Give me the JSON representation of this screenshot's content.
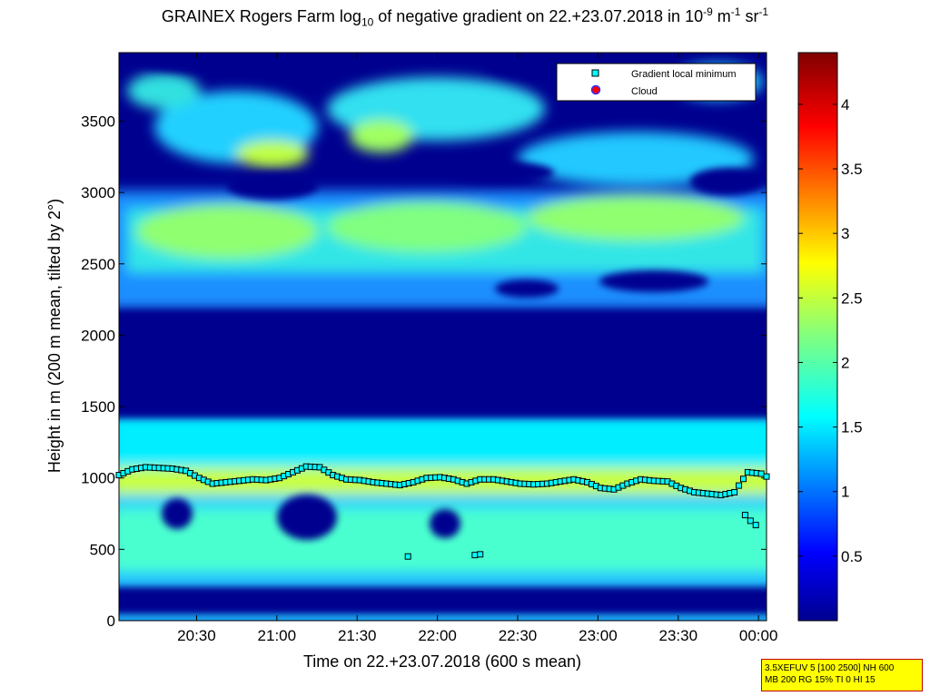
{
  "chart_data": {
    "type": "heatmap",
    "title": {
      "prefix": "GRAINEX Rogers Farm log",
      "sub": "10",
      "middle": " of negative gradient on 22.+23.07.2018 in 10",
      "sup1": "-9",
      "unit_m": " m",
      "sup2": "-1",
      "unit_sr": " sr",
      "sup3": "-1"
    },
    "xlabel": "Time on 22.+23.07.2018 (600 s mean)",
    "ylabel": "Height in m (200 m mean, tilted by 2°)",
    "x_ticks": [
      "20:30",
      "21:00",
      "21:30",
      "22:00",
      "22:30",
      "23:00",
      "23:30",
      "00:00"
    ],
    "x_tick_minutes": [
      1230,
      1260,
      1290,
      1320,
      1350,
      1380,
      1410,
      1440
    ],
    "xlim_minutes": [
      1201,
      1443
    ],
    "y_ticks": [
      "0",
      "500",
      "1000",
      "1500",
      "2000",
      "2500",
      "3000",
      "3500"
    ],
    "y_tick_values": [
      0,
      500,
      1000,
      1500,
      2000,
      2500,
      3000,
      3500
    ],
    "ylim": [
      0,
      3980
    ],
    "colorbar": {
      "ticks": [
        "0.5",
        "1",
        "1.5",
        "2",
        "2.5",
        "3",
        "3.5",
        "4"
      ],
      "tick_values": [
        0.5,
        1,
        1.5,
        2,
        2.5,
        3,
        3.5,
        4
      ],
      "range": [
        0,
        4.4
      ],
      "colormap": "jet"
    },
    "legend": {
      "placement": "top-right",
      "entries": [
        {
          "label": "Gradient local minimum",
          "marker": "square",
          "color": "#00ffff"
        },
        {
          "label": "Cloud",
          "marker": "circle",
          "color": "#ff0000"
        }
      ]
    },
    "series": [
      {
        "name": "Gradient local minimum",
        "x": [
          1201,
          1206,
          1211,
          1216,
          1221,
          1226,
          1231,
          1236,
          1241,
          1246,
          1251,
          1256,
          1261,
          1266,
          1271,
          1276,
          1281,
          1286,
          1291,
          1296,
          1301,
          1306,
          1311,
          1316,
          1321,
          1326,
          1331,
          1336,
          1341,
          1346,
          1351,
          1356,
          1361,
          1366,
          1371,
          1376,
          1381,
          1386,
          1391,
          1396,
          1401,
          1406,
          1411,
          1416,
          1421,
          1426,
          1431,
          1436,
          1441,
          1443
        ],
        "y": [
          1020,
          1060,
          1075,
          1070,
          1065,
          1050,
          1000,
          960,
          970,
          980,
          990,
          985,
          1000,
          1040,
          1080,
          1075,
          1020,
          990,
          985,
          970,
          960,
          950,
          970,
          1000,
          1005,
          990,
          960,
          990,
          990,
          975,
          960,
          955,
          960,
          975,
          990,
          970,
          930,
          920,
          960,
          990,
          980,
          975,
          930,
          900,
          890,
          880,
          900,
          1040,
          1030,
          1010
        ]
      },
      {
        "name": "Gradient local minimum (isolated)",
        "x": [
          1309,
          1334,
          1336,
          1435,
          1437,
          1439
        ],
        "y": [
          450,
          460,
          465,
          740,
          700,
          670
        ]
      }
    ]
  },
  "info_box": {
    "line1": "3.5XEFUV 5 [100 2500] NH 600",
    "line2": "MB 200 RG 15% TI 0 HI 15"
  }
}
